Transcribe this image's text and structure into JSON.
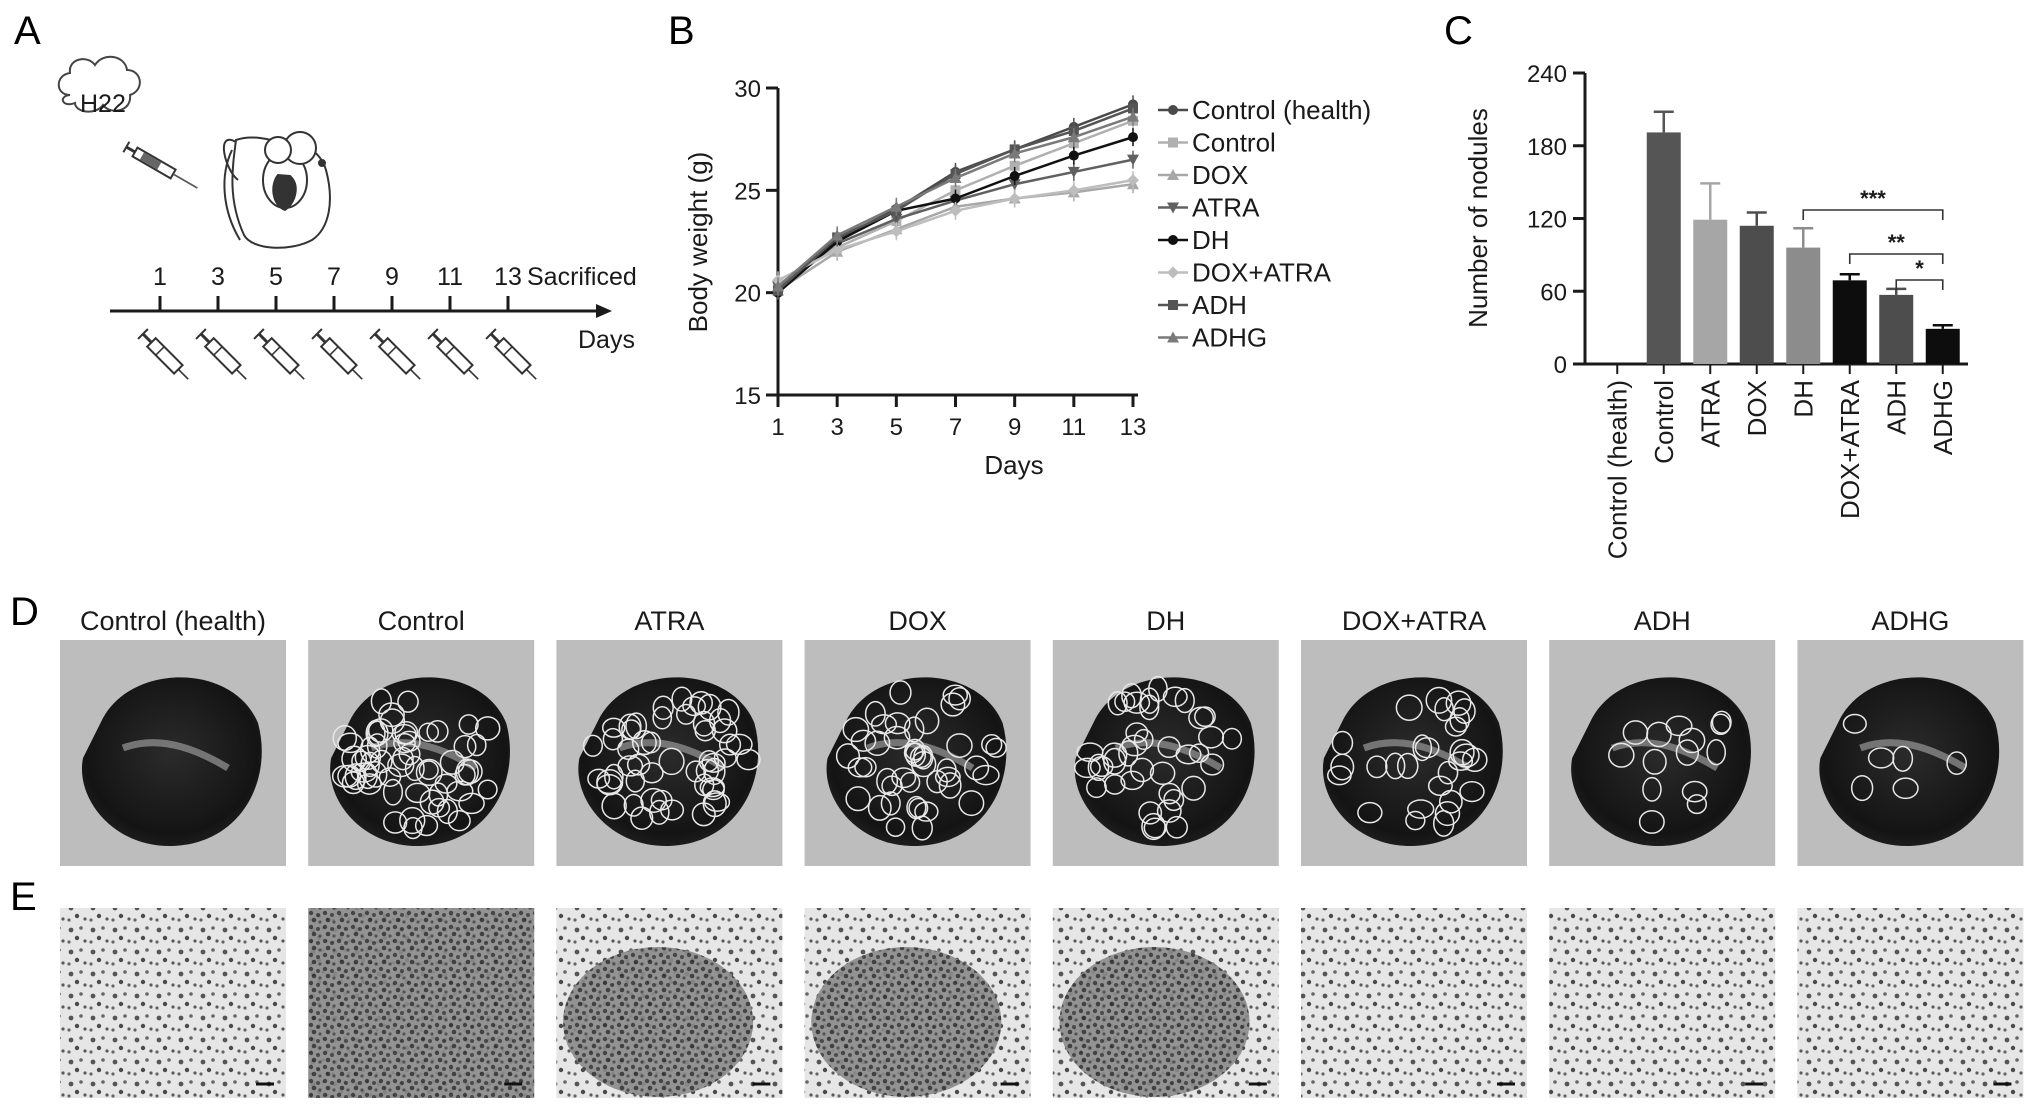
{
  "panel_letters": {
    "a": "A",
    "b": "B",
    "c": "C",
    "d": "D",
    "e": "E"
  },
  "schematic": {
    "cell_line": "H22",
    "days": [
      "1",
      "3",
      "5",
      "7",
      "9",
      "11",
      "13"
    ],
    "end_label": "Sacrificed",
    "axis_label": "Days"
  },
  "chart_data": [
    {
      "type": "line",
      "xlabel": "Days",
      "ylabel": "Body weight (g)",
      "ylim": [
        15,
        30
      ],
      "yticks": [
        15,
        20,
        25,
        30
      ],
      "x": [
        1,
        3,
        5,
        7,
        9,
        11,
        13
      ],
      "legend": "right",
      "series": [
        {
          "name": "Control (health)",
          "values": [
            20.2,
            22.6,
            24.1,
            25.9,
            27.0,
            28.1,
            29.2
          ],
          "color": "#4a4a4a",
          "marker": "circle"
        },
        {
          "name": "Control",
          "values": [
            20.4,
            22.2,
            23.5,
            25.0,
            26.2,
            27.3,
            28.4
          ],
          "color": "#b0b0b0",
          "marker": "square"
        },
        {
          "name": "DOX",
          "values": [
            20.1,
            22.0,
            23.1,
            24.2,
            24.6,
            24.9,
            25.3
          ],
          "color": "#a8a8a8",
          "marker": "triangle-up"
        },
        {
          "name": "ATRA",
          "values": [
            20.3,
            22.4,
            23.6,
            24.5,
            25.3,
            25.9,
            26.5
          ],
          "color": "#606060",
          "marker": "triangle-down"
        },
        {
          "name": "DH",
          "values": [
            20.0,
            22.5,
            24.0,
            24.6,
            25.7,
            26.7,
            27.6
          ],
          "color": "#111111",
          "marker": "circle"
        },
        {
          "name": "DOX+ATRA",
          "values": [
            20.6,
            22.1,
            23.0,
            24.0,
            24.6,
            25.0,
            25.5
          ],
          "color": "#bdbdbd",
          "marker": "diamond"
        },
        {
          "name": "ADH",
          "values": [
            20.1,
            22.7,
            24.0,
            25.8,
            27.0,
            27.9,
            29.0
          ],
          "color": "#555555",
          "marker": "square"
        },
        {
          "name": "ADHG",
          "values": [
            20.3,
            22.8,
            24.2,
            25.6,
            26.8,
            27.6,
            28.6
          ],
          "color": "#7a7a7a",
          "marker": "triangle-up"
        }
      ]
    },
    {
      "type": "bar",
      "ylabel": "Number of nodules",
      "ylim": [
        0,
        240
      ],
      "yticks": [
        0,
        60,
        120,
        180,
        240
      ],
      "categories": [
        "Control (health)",
        "Control",
        "ATRA",
        "DOX",
        "DH",
        "DOX+ATRA",
        "ADH",
        "ADHG"
      ],
      "values": [
        0,
        191,
        119,
        114,
        96,
        69,
        57,
        29
      ],
      "errors": [
        0,
        17,
        30,
        11,
        16,
        5,
        5,
        3
      ],
      "colors": [
        "#444444",
        "#555555",
        "#a6a6a6",
        "#4d4d4d",
        "#8c8c8c",
        "#0d0d0d",
        "#4d4d4d",
        "#0d0d0d"
      ],
      "significance": [
        {
          "from": "DH",
          "to": "ADHG",
          "label": "***"
        },
        {
          "from": "DOX+ATRA",
          "to": "ADHG",
          "label": "**"
        },
        {
          "from": "ADH",
          "to": "ADHG",
          "label": "*"
        }
      ]
    }
  ],
  "photos_d": {
    "titles": [
      "Control (health)",
      "Control",
      "ATRA",
      "DOX",
      "DH",
      "DOX+ATRA",
      "ADH",
      "ADHG"
    ]
  }
}
